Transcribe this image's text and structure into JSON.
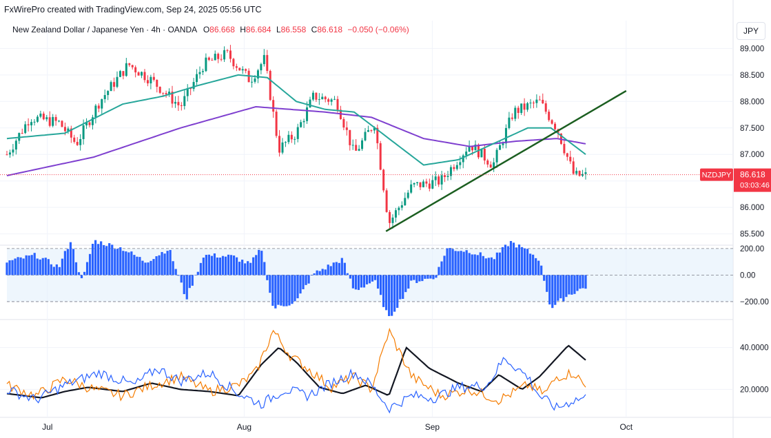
{
  "watermark": "FxWirePro created with TradingView.com, Sep 24, 2025 05:56 UTC",
  "legend": {
    "symbol": "New Zealand Dollar / Japanese Yen · 4h · OANDA",
    "o_label": "O",
    "o": "86.668",
    "h_label": "H",
    "h": "86.684",
    "l_label": "L",
    "l": "86.558",
    "c_label": "C",
    "c": "86.618",
    "change": "−0.050 (−0.06%)"
  },
  "currency": "JPY",
  "colors": {
    "up": "#089981",
    "down": "#f23645",
    "ma_fast": "#26a69a",
    "ma_slow": "#7e3fcf",
    "trendline": "#1b5e20",
    "histogram": "#2962ff",
    "band_fill": "#e3f0fb",
    "line_black": "#131722",
    "line_orange": "#f57c00",
    "line_blue": "#2962ff"
  },
  "chart_data": [
    {
      "type": "candlestick",
      "symbol": "NZDJPY",
      "ylim": [
        85.3,
        89.2
      ],
      "yticks": [
        "89.000",
        "88.500",
        "88.000",
        "87.500",
        "87.000",
        "86.500",
        "86.000",
        "85.500"
      ],
      "price_label": "NZDJPY",
      "last_price": "86.618",
      "countdown": "03:03:46",
      "x_labels": [
        "Jul",
        "Aug",
        "Sep",
        "Oct"
      ],
      "ohlc_keypoints": [
        {
          "t": 0,
          "p": 87.0
        },
        {
          "t": 0.04,
          "p": 87.7
        },
        {
          "t": 0.09,
          "p": 87.6
        },
        {
          "t": 0.12,
          "p": 87.2
        },
        {
          "t": 0.16,
          "p": 88.0
        },
        {
          "t": 0.21,
          "p": 88.7
        },
        {
          "t": 0.25,
          "p": 88.4
        },
        {
          "t": 0.3,
          "p": 87.9
        },
        {
          "t": 0.34,
          "p": 88.7
        },
        {
          "t": 0.38,
          "p": 88.9
        },
        {
          "t": 0.42,
          "p": 88.4
        },
        {
          "t": 0.445,
          "p": 88.8
        },
        {
          "t": 0.47,
          "p": 87.1
        },
        {
          "t": 0.5,
          "p": 87.4
        },
        {
          "t": 0.53,
          "p": 88.1
        },
        {
          "t": 0.57,
          "p": 88.0
        },
        {
          "t": 0.6,
          "p": 87.0
        },
        {
          "t": 0.635,
          "p": 87.6
        },
        {
          "t": 0.66,
          "p": 85.7
        },
        {
          "t": 0.7,
          "p": 86.4
        },
        {
          "t": 0.75,
          "p": 86.5
        },
        {
          "t": 0.8,
          "p": 87.2
        },
        {
          "t": 0.84,
          "p": 86.8
        },
        {
          "t": 0.875,
          "p": 87.8
        },
        {
          "t": 0.92,
          "p": 88.0
        },
        {
          "t": 0.95,
          "p": 87.5
        },
        {
          "t": 0.98,
          "p": 86.6
        },
        {
          "t": 1.0,
          "p": 86.6
        }
      ],
      "ma_fast_keypoints": [
        {
          "t": 0,
          "p": 87.3
        },
        {
          "t": 0.1,
          "p": 87.4
        },
        {
          "t": 0.2,
          "p": 87.95
        },
        {
          "t": 0.27,
          "p": 88.1
        },
        {
          "t": 0.33,
          "p": 88.3
        },
        {
          "t": 0.4,
          "p": 88.5
        },
        {
          "t": 0.45,
          "p": 88.45
        },
        {
          "t": 0.5,
          "p": 88.0
        },
        {
          "t": 0.55,
          "p": 87.85
        },
        {
          "t": 0.6,
          "p": 87.8
        },
        {
          "t": 0.66,
          "p": 87.3
        },
        {
          "t": 0.72,
          "p": 86.8
        },
        {
          "t": 0.78,
          "p": 86.9
        },
        {
          "t": 0.84,
          "p": 87.2
        },
        {
          "t": 0.9,
          "p": 87.5
        },
        {
          "t": 0.94,
          "p": 87.5
        },
        {
          "t": 1.0,
          "p": 87.0
        }
      ],
      "ma_slow_keypoints": [
        {
          "t": 0,
          "p": 86.6
        },
        {
          "t": 0.15,
          "p": 86.95
        },
        {
          "t": 0.3,
          "p": 87.5
        },
        {
          "t": 0.43,
          "p": 87.9
        },
        {
          "t": 0.55,
          "p": 87.8
        },
        {
          "t": 0.63,
          "p": 87.7
        },
        {
          "t": 0.72,
          "p": 87.3
        },
        {
          "t": 0.8,
          "p": 87.15
        },
        {
          "t": 0.88,
          "p": 87.25
        },
        {
          "t": 0.95,
          "p": 87.3
        },
        {
          "t": 1.0,
          "p": 87.2
        }
      ],
      "trendline": {
        "from": {
          "t": 0.655,
          "p": 85.55
        },
        "to": {
          "t": 1.07,
          "p": 88.2
        }
      }
    },
    {
      "type": "histogram",
      "ylim": [
        -330,
        220
      ],
      "yticks": [
        "200.00",
        "0.00",
        "−200.00"
      ],
      "band": [
        -200,
        200
      ],
      "keypoints": [
        {
          "t": 0,
          "v": 100
        },
        {
          "t": 0.05,
          "v": 150
        },
        {
          "t": 0.09,
          "v": 60
        },
        {
          "t": 0.11,
          "v": 260
        },
        {
          "t": 0.13,
          "v": -50
        },
        {
          "t": 0.15,
          "v": 260
        },
        {
          "t": 0.2,
          "v": 200
        },
        {
          "t": 0.24,
          "v": 100
        },
        {
          "t": 0.28,
          "v": 200
        },
        {
          "t": 0.31,
          "v": -180
        },
        {
          "t": 0.34,
          "v": 150
        },
        {
          "t": 0.39,
          "v": 140
        },
        {
          "t": 0.42,
          "v": 80
        },
        {
          "t": 0.44,
          "v": 200
        },
        {
          "t": 0.46,
          "v": -250
        },
        {
          "t": 0.5,
          "v": -200
        },
        {
          "t": 0.53,
          "v": 10
        },
        {
          "t": 0.58,
          "v": 120
        },
        {
          "t": 0.6,
          "v": -120
        },
        {
          "t": 0.635,
          "v": -40
        },
        {
          "t": 0.66,
          "v": -330
        },
        {
          "t": 0.7,
          "v": -50
        },
        {
          "t": 0.74,
          "v": -20
        },
        {
          "t": 0.76,
          "v": 200
        },
        {
          "t": 0.8,
          "v": 180
        },
        {
          "t": 0.84,
          "v": 120
        },
        {
          "t": 0.87,
          "v": 250
        },
        {
          "t": 0.9,
          "v": 180
        },
        {
          "t": 0.92,
          "v": 120
        },
        {
          "t": 0.94,
          "v": -250
        },
        {
          "t": 0.97,
          "v": -150
        },
        {
          "t": 1.0,
          "v": -90
        }
      ]
    },
    {
      "type": "line",
      "ylim": [
        7,
        53
      ],
      "yticks": [
        "40.0000",
        "20.0000"
      ],
      "series": [
        {
          "color": "#131722",
          "keypoints": [
            {
              "t": 0,
              "v": 18
            },
            {
              "t": 0.06,
              "v": 16
            },
            {
              "t": 0.1,
              "v": 19
            },
            {
              "t": 0.14,
              "v": 21
            },
            {
              "t": 0.2,
              "v": 19
            },
            {
              "t": 0.25,
              "v": 23
            },
            {
              "t": 0.3,
              "v": 20
            },
            {
              "t": 0.35,
              "v": 19
            },
            {
              "t": 0.4,
              "v": 17
            },
            {
              "t": 0.44,
              "v": 32
            },
            {
              "t": 0.47,
              "v": 40
            },
            {
              "t": 0.5,
              "v": 33
            },
            {
              "t": 0.54,
              "v": 21
            },
            {
              "t": 0.58,
              "v": 18
            },
            {
              "t": 0.62,
              "v": 22
            },
            {
              "t": 0.66,
              "v": 17
            },
            {
              "t": 0.69,
              "v": 40
            },
            {
              "t": 0.73,
              "v": 30
            },
            {
              "t": 0.78,
              "v": 23
            },
            {
              "t": 0.82,
              "v": 19
            },
            {
              "t": 0.85,
              "v": 27
            },
            {
              "t": 0.89,
              "v": 20
            },
            {
              "t": 0.92,
              "v": 26
            },
            {
              "t": 0.94,
              "v": 32
            },
            {
              "t": 0.97,
              "v": 41
            },
            {
              "t": 1.0,
              "v": 34
            }
          ]
        },
        {
          "color": "#f57c00",
          "keypoints": [
            {
              "t": 0,
              "v": 22
            },
            {
              "t": 0.05,
              "v": 17
            },
            {
              "t": 0.1,
              "v": 25
            },
            {
              "t": 0.15,
              "v": 20
            },
            {
              "t": 0.2,
              "v": 17
            },
            {
              "t": 0.25,
              "v": 22
            },
            {
              "t": 0.3,
              "v": 26
            },
            {
              "t": 0.35,
              "v": 19
            },
            {
              "t": 0.4,
              "v": 22
            },
            {
              "t": 0.43,
              "v": 28
            },
            {
              "t": 0.46,
              "v": 48
            },
            {
              "t": 0.49,
              "v": 36
            },
            {
              "t": 0.52,
              "v": 30
            },
            {
              "t": 0.56,
              "v": 21
            },
            {
              "t": 0.6,
              "v": 26
            },
            {
              "t": 0.63,
              "v": 20
            },
            {
              "t": 0.66,
              "v": 48
            },
            {
              "t": 0.7,
              "v": 26
            },
            {
              "t": 0.75,
              "v": 17
            },
            {
              "t": 0.8,
              "v": 20
            },
            {
              "t": 0.85,
              "v": 15
            },
            {
              "t": 0.9,
              "v": 22
            },
            {
              "t": 0.93,
              "v": 18
            },
            {
              "t": 0.95,
              "v": 26
            },
            {
              "t": 0.98,
              "v": 28
            },
            {
              "t": 1.0,
              "v": 21
            }
          ]
        },
        {
          "color": "#2962ff",
          "keypoints": [
            {
              "t": 0,
              "v": 20
            },
            {
              "t": 0.05,
              "v": 15
            },
            {
              "t": 0.1,
              "v": 22
            },
            {
              "t": 0.16,
              "v": 28
            },
            {
              "t": 0.22,
              "v": 22
            },
            {
              "t": 0.26,
              "v": 30
            },
            {
              "t": 0.3,
              "v": 24
            },
            {
              "t": 0.35,
              "v": 28
            },
            {
              "t": 0.4,
              "v": 18
            },
            {
              "t": 0.44,
              "v": 13
            },
            {
              "t": 0.48,
              "v": 20
            },
            {
              "t": 0.52,
              "v": 17
            },
            {
              "t": 0.56,
              "v": 23
            },
            {
              "t": 0.6,
              "v": 28
            },
            {
              "t": 0.63,
              "v": 22
            },
            {
              "t": 0.66,
              "v": 11
            },
            {
              "t": 0.7,
              "v": 17
            },
            {
              "t": 0.74,
              "v": 16
            },
            {
              "t": 0.78,
              "v": 21
            },
            {
              "t": 0.83,
              "v": 22
            },
            {
              "t": 0.86,
              "v": 35
            },
            {
              "t": 0.9,
              "v": 26
            },
            {
              "t": 0.92,
              "v": 17
            },
            {
              "t": 0.95,
              "v": 11
            },
            {
              "t": 0.98,
              "v": 15
            },
            {
              "t": 1.0,
              "v": 16
            }
          ]
        }
      ]
    }
  ]
}
